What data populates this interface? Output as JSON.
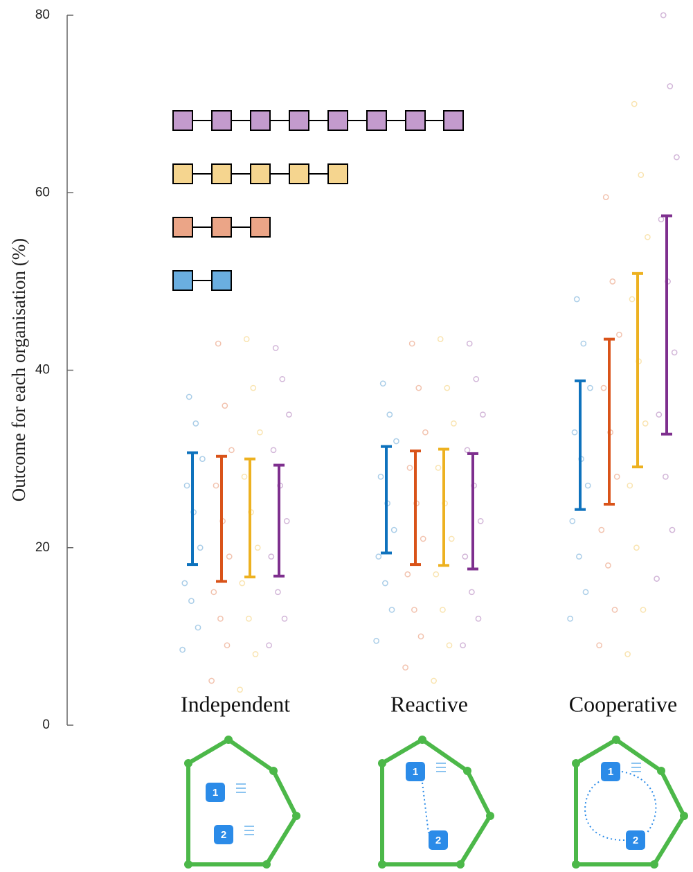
{
  "chart_data": {
    "type": "errorbar",
    "ylabel": "Outcome for each organisation (%)",
    "ylim": [
      0,
      80
    ],
    "yticks": [
      0,
      20,
      40,
      60,
      80
    ],
    "categories": [
      "Independent",
      "Reactive",
      "Cooperative"
    ],
    "series": [
      {
        "color": "#0e72bd",
        "lower": [
          18.1,
          19.4,
          24.3
        ],
        "upper": [
          30.7,
          31.4,
          38.8
        ],
        "points": [
          [
            8.5,
            11,
            14,
            16,
            20,
            24,
            27,
            30,
            34,
            37
          ],
          [
            9.5,
            13,
            16,
            19,
            22,
            25,
            28,
            32,
            35,
            38.5
          ],
          [
            12,
            15,
            19,
            23,
            27,
            30,
            33,
            38,
            43,
            48
          ]
        ]
      },
      {
        "color": "#d95319",
        "lower": [
          16.2,
          18.1,
          24.9
        ],
        "upper": [
          30.3,
          30.9,
          43.5
        ],
        "points": [
          [
            5,
            9,
            12,
            15,
            19,
            23,
            27,
            31,
            36,
            43
          ],
          [
            6.5,
            10,
            13,
            17,
            21,
            25,
            29,
            33,
            38,
            43
          ],
          [
            9,
            13,
            18,
            22,
            28,
            33,
            38,
            44,
            50,
            59.5
          ]
        ]
      },
      {
        "color": "#edb120",
        "lower": [
          16.7,
          18.0,
          29.1
        ],
        "upper": [
          30.0,
          31.1,
          50.9
        ],
        "points": [
          [
            4,
            8,
            12,
            16,
            20,
            24,
            28,
            33,
            38,
            43.5
          ],
          [
            5,
            9,
            13,
            17,
            21,
            25,
            29,
            34,
            38,
            43.5
          ],
          [
            8,
            13,
            20,
            27,
            34,
            41,
            48,
            55,
            62,
            70
          ]
        ]
      },
      {
        "color": "#7e2f8e",
        "lower": [
          16.8,
          17.6,
          32.8
        ],
        "upper": [
          29.3,
          30.6,
          57.4
        ],
        "points": [
          [
            9,
            12,
            15,
            19,
            23,
            27,
            31,
            35,
            39,
            42.5
          ],
          [
            9,
            12,
            15,
            19,
            23,
            27,
            31,
            35,
            39,
            43
          ],
          [
            16.5,
            22,
            28,
            35,
            42,
            50,
            57,
            64,
            72,
            80
          ]
        ]
      }
    ]
  },
  "diagrams": [
    {
      "nodes": [
        "1",
        "2"
      ]
    },
    {
      "nodes": [
        "1",
        "2"
      ]
    },
    {
      "nodes": [
        "1",
        "2"
      ]
    }
  ]
}
